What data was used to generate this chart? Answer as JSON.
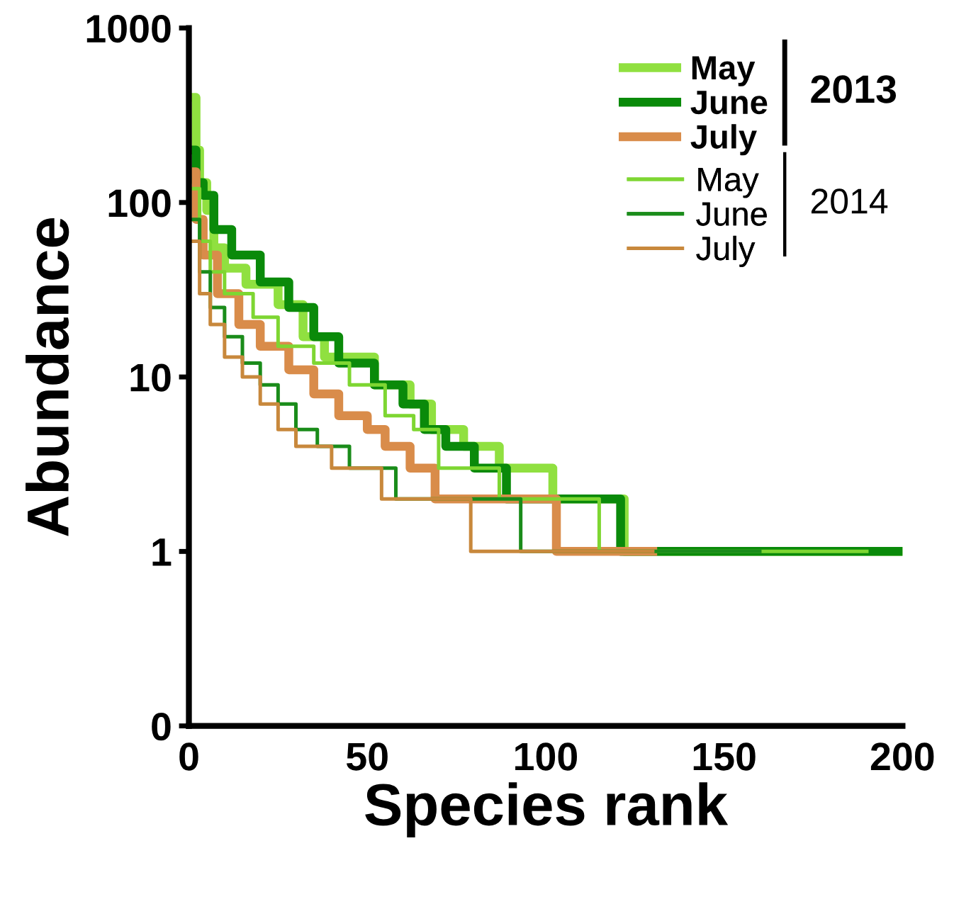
{
  "chart_data": {
    "type": "step",
    "xlabel": "Species rank",
    "ylabel": "Abundance",
    "log": "y",
    "xlim": [
      0,
      200
    ],
    "xticks": [
      0,
      50,
      100,
      150,
      200
    ],
    "ylim": [
      0.1,
      1000
    ],
    "yticks": [
      {
        "value": 0.1,
        "label": "0"
      },
      1,
      10,
      100,
      1000
    ],
    "grid": false,
    "legend": "top right",
    "marker": "none",
    "line_style": "solid",
    "annotations": [
      "2013",
      "2014"
    ],
    "series": [
      {
        "name": "May",
        "color": "#90e040",
        "x": [
          1,
          2,
          3,
          5,
          7,
          10,
          16,
          25,
          32,
          38,
          52,
          62,
          68,
          77,
          87,
          102,
          122,
          200
        ],
        "values": [
          400,
          200,
          130,
          90,
          55,
          42,
          34,
          26,
          17,
          13,
          9,
          7,
          5,
          4,
          3,
          2,
          1,
          1
        ]
      },
      {
        "name": "June",
        "color": "#0a8a0a",
        "x": [
          1,
          2,
          4,
          7,
          12,
          20,
          28,
          35,
          42,
          52,
          60,
          66,
          72,
          80,
          89,
          121,
          200
        ],
        "values": [
          200,
          130,
          110,
          70,
          50,
          35,
          25,
          17,
          12,
          9,
          7,
          5,
          4,
          3,
          2,
          1,
          1
        ]
      },
      {
        "name": "July",
        "color": "#d98c4a",
        "x": [
          1,
          2,
          4,
          8,
          14,
          20,
          28,
          35,
          42,
          50,
          55,
          62,
          69,
          103,
          130
        ],
        "values": [
          150,
          80,
          50,
          30,
          20,
          15,
          11,
          8,
          6,
          5,
          4,
          3,
          2,
          1,
          1
        ]
      },
      {
        "name": "May",
        "color": "#7ed632",
        "x": [
          1,
          3,
          6,
          10,
          18,
          25,
          35,
          45,
          55,
          63,
          70,
          87,
          115,
          190
        ],
        "values": [
          120,
          60,
          40,
          30,
          22,
          15,
          12,
          9,
          6,
          5,
          3,
          2,
          1,
          1
        ]
      },
      {
        "name": "June",
        "color": "#1a8c1a",
        "x": [
          1,
          3,
          6,
          10,
          15,
          20,
          25,
          30,
          36,
          45,
          58,
          93,
          160
        ],
        "values": [
          80,
          40,
          25,
          17,
          12,
          9,
          7,
          5,
          4,
          3,
          2,
          1,
          1
        ]
      },
      {
        "name": "July",
        "color": "#c8883c",
        "x": [
          1,
          3,
          6,
          10,
          15,
          20,
          25,
          30,
          40,
          54,
          79,
          130
        ],
        "values": [
          60,
          30,
          20,
          13,
          10,
          7,
          5,
          4,
          3,
          2,
          1,
          1
        ]
      }
    ]
  }
}
